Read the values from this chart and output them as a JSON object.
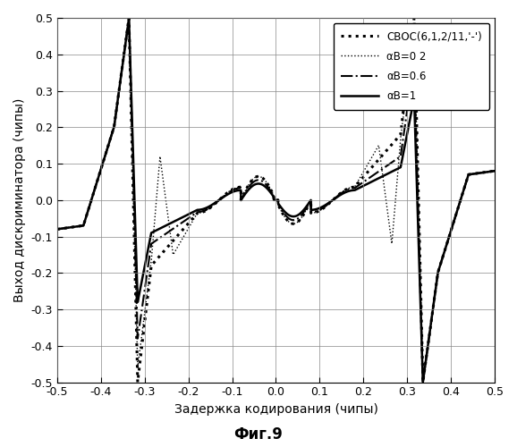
{
  "xlabel": "Задержка кодирования (чипы)",
  "ylabel": "Выход дискриминатора (чипы)",
  "caption": "Фиг.9",
  "xlim": [
    -0.5,
    0.5
  ],
  "ylim": [
    -0.5,
    0.5
  ],
  "xticks": [
    -0.5,
    -0.4,
    -0.3,
    -0.2,
    -0.1,
    0.0,
    0.1,
    0.2,
    0.3,
    0.4,
    0.5
  ],
  "yticks": [
    -0.5,
    -0.4,
    -0.3,
    -0.2,
    -0.1,
    0.0,
    0.1,
    0.2,
    0.3,
    0.4,
    0.5
  ],
  "legend_labels": [
    "СВОС(6,1,2/11,'-')",
    "αB=0 2",
    "αB=0.6",
    "αB=1"
  ],
  "background_color": "#ffffff",
  "grid_color": "#888888",
  "line_colors": [
    "#000000",
    "#000000",
    "#000000",
    "#000000"
  ]
}
